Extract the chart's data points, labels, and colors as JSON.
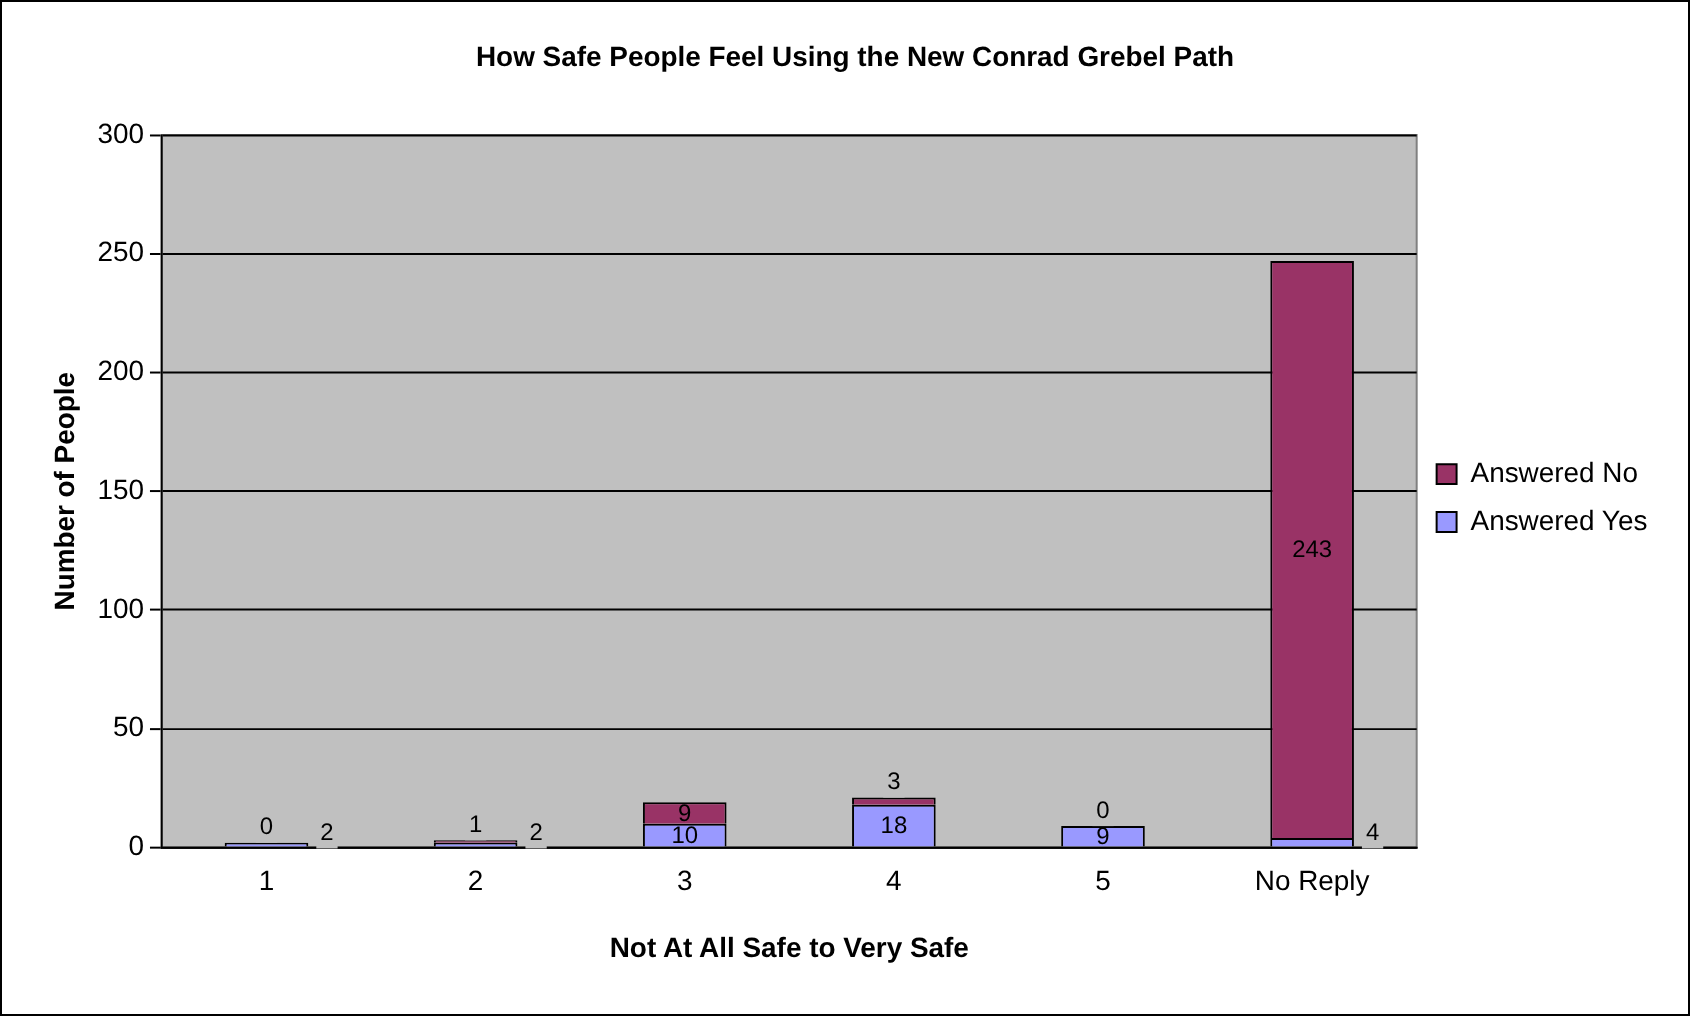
{
  "chart_data": {
    "type": "bar",
    "title": "How Safe People Feel Using the New Conrad Grebel Path",
    "xlabel": "Not At All Safe to Very Safe",
    "ylabel": "Number of People",
    "categories": [
      "1",
      "2",
      "3",
      "4",
      "5",
      "No Reply"
    ],
    "stacked": true,
    "series": [
      {
        "name": "Answered Yes",
        "color": "#9999ff",
        "values": [
          2,
          2,
          10,
          18,
          9,
          4
        ]
      },
      {
        "name": "Answered No",
        "color": "#993366",
        "values": [
          0,
          1,
          9,
          3,
          0,
          243
        ]
      }
    ],
    "ylim": [
      0,
      300
    ],
    "yticks": [
      0,
      50,
      100,
      150,
      200,
      250,
      300
    ],
    "grid": "y",
    "legend": "right",
    "data_labels": true
  }
}
